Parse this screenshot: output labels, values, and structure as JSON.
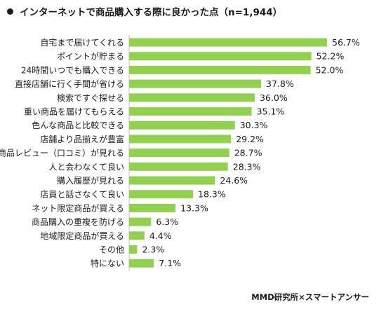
{
  "header": {
    "title": "インターネットで商品購入する際に良かった点（n=1,944）"
  },
  "footer": {
    "credit": "MMD研究所×スマートアンサー"
  },
  "colors": {
    "bar": "#92d050",
    "axis": "#bfbfbf",
    "text": "#1a1a1a"
  },
  "chart_data": {
    "type": "bar",
    "orientation": "horizontal",
    "categories": [
      "自宅まで届けてくれる",
      "ポイントが貯まる",
      "24時間いつでも購入できる",
      "直接店舗に行く手間が省ける",
      "検索ですぐ探せる",
      "重い商品を届けてもらえる",
      "色んな商品と比較できる",
      "店舗より品揃えが豊富",
      "商品レビュー（口コミ）が見れる",
      "人と会わなくて良い",
      "購入履歴が見れる",
      "店員と話さなくて良い",
      "ネット限定商品が買える",
      "商品購入の重複を防げる",
      "地域限定商品が買える",
      "その他",
      "特にない"
    ],
    "values": [
      56.7,
      52.2,
      52.0,
      37.8,
      36.0,
      35.1,
      30.3,
      29.2,
      28.7,
      28.3,
      24.6,
      18.3,
      13.3,
      6.3,
      4.4,
      2.3,
      7.1
    ],
    "value_labels": [
      "56.7%",
      "52.2%",
      "52.0%",
      "37.8%",
      "36.0%",
      "35.1%",
      "30.3%",
      "29.2%",
      "28.7%",
      "28.3%",
      "24.6%",
      "18.3%",
      "13.3%",
      "6.3%",
      "4.4%",
      "2.3%",
      "7.1%"
    ],
    "unit": "%",
    "xlim": [
      0,
      60
    ],
    "grid": false,
    "legend": "none"
  }
}
